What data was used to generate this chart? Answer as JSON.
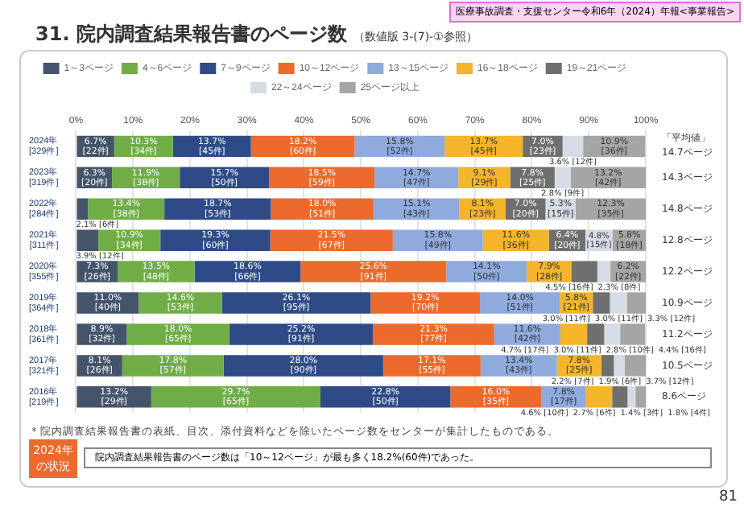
{
  "chart_data": {
    "type": "bar",
    "orientation": "horizontal",
    "stacked": true,
    "title": "31. 院内調査結果報告書のページ数",
    "subtitle": "（数値版 3-(7)-①参照）",
    "categories": [
      "2024年\n[329件]",
      "2023年\n[319件]",
      "2022年\n[284件]",
      "2021年\n[311件]",
      "2020年\n[355件]",
      "2019年\n[364件]",
      "2018年\n[361件]",
      "2017年\n[321件]",
      "2016年\n[219件]"
    ],
    "series": [
      {
        "name": "1～3ページ",
        "color": "#44546a",
        "values": [
          6.7,
          6.3,
          2.1,
          3.9,
          7.3,
          11.0,
          8.9,
          8.1,
          13.2
        ],
        "value_labels": [
          "6.7%\n[22件]",
          "6.3%\n[20件]",
          "2.1%\n[6件]",
          "3.9%\n[12件]",
          "7.3%\n[26件]",
          "11.0%\n[40件]",
          "8.9%\n[32件]",
          "8.1%\n[26件]",
          "13.2%\n[29件]"
        ]
      },
      {
        "name": "4～6ページ",
        "color": "#70ad47",
        "values": [
          10.3,
          11.9,
          13.4,
          10.9,
          13.5,
          14.6,
          18.0,
          17.8,
          29.7
        ],
        "value_labels": [
          "10.3%\n[34件]",
          "11.9%\n[38件]",
          "13.4%\n[38件]",
          "10.9%\n[34件]",
          "13.5%\n[48件]",
          "14.6%\n[53件]",
          "18.0%\n[65件]",
          "17.8%\n[57件]",
          "29.7%\n[65件]"
        ]
      },
      {
        "name": "7～9ページ",
        "color": "#2f4b87",
        "values": [
          13.7,
          15.7,
          18.7,
          19.3,
          18.6,
          26.1,
          25.2,
          28.0,
          22.8
        ],
        "value_labels": [
          "13.7%\n[45件]",
          "15.7%\n[50件]",
          "18.7%\n[53件]",
          "19.3%\n[60件]",
          "18.6%\n[66件]",
          "26.1%\n[95件]",
          "25.2%\n[91件]",
          "28.0%\n[90件]",
          "22.8%\n[50件]"
        ]
      },
      {
        "name": "10～12ページ",
        "color": "#ec6a2c",
        "values": [
          18.2,
          18.5,
          18.0,
          21.5,
          25.6,
          19.2,
          21.3,
          17.1,
          16.0
        ],
        "value_labels": [
          "18.2%\n[60件]",
          "18.5%\n[59件]",
          "18.0%\n[51件]",
          "21.5%\n[67件]",
          "25.6%\n[91件]",
          "19.2%\n[70件]",
          "21.3%\n[77件]",
          "17.1%\n[55件]",
          "16.0%\n[35件]"
        ]
      },
      {
        "name": "13～15ページ",
        "color": "#8faadc",
        "values": [
          15.8,
          14.7,
          15.1,
          15.8,
          14.1,
          14.0,
          11.6,
          13.4,
          7.8
        ],
        "value_labels": [
          "15.8%\n[52件]",
          "14.7%\n[47件]",
          "15.1%\n[43件]",
          "15.8%\n[49件]",
          "14.1%\n[50件]",
          "14.0%\n[51件]",
          "11.6%\n[42件]",
          "13.4%\n[43件]",
          "7.8%\n[17件]"
        ]
      },
      {
        "name": "16～18ページ",
        "color": "#f4b52b",
        "values": [
          13.7,
          9.1,
          8.1,
          11.6,
          7.9,
          5.8,
          4.7,
          7.8,
          4.6
        ],
        "value_labels": [
          "13.7%\n[45件]",
          "9.1%\n[29件]",
          "8.1%\n[23件]",
          "11.6%\n[36件]",
          "7.9%\n[28件]",
          "5.8%\n[21件]",
          "4.7%\n[17件]",
          "7.8%\n[25件]",
          "4.6%\n[10件]"
        ]
      },
      {
        "name": "19～21ページ",
        "color": "#6f6f6f",
        "values": [
          7.0,
          7.8,
          7.0,
          6.4,
          4.5,
          3.0,
          3.0,
          2.2,
          2.7
        ],
        "value_labels": [
          "7.0%\n[23件]",
          "7.8%\n[25件]",
          "7.0%\n[20件]",
          "6.4%\n[20件]",
          "4.5%\n[16件]",
          "3.0%\n[11件]",
          "3.0%\n[11件]",
          "2.2%\n[7件]",
          "2.7%\n[6件]"
        ]
      },
      {
        "name": "22～24ページ",
        "color": "#d6dce5",
        "values": [
          3.6,
          2.8,
          5.3,
          4.8,
          2.3,
          3.0,
          2.8,
          1.9,
          1.4
        ],
        "value_labels": [
          "3.6%\n[12件]",
          "2.8%\n[9件]",
          "5.3%\n[15件]",
          "4.8%\n[15件]",
          "2.3%\n[8件]",
          "3.0%\n[11件]",
          "2.8%\n[10件]",
          "1.9%\n[6件]",
          "1.4%\n[3件]"
        ]
      },
      {
        "name": "25ページ以上",
        "color": "#a5a5a5",
        "values": [
          10.9,
          13.2,
          12.3,
          5.8,
          6.2,
          3.3,
          4.4,
          3.7,
          1.8
        ],
        "value_labels": [
          "10.9%\n[36件]",
          "13.2%\n[42件]",
          "12.3%\n[35件]",
          "5.8%\n[18件]",
          "6.2%\n[22件]",
          "3.3%\n[12件]",
          "4.4%\n[16件]",
          "3.7%\n[12件]",
          "1.8%\n[4件]"
        ]
      }
    ],
    "xlim": [
      0,
      100
    ],
    "xticks": [
      {
        "value": 0,
        "label": "0%"
      },
      {
        "value": 10,
        "label": "10%"
      },
      {
        "value": 20,
        "label": "20%"
      },
      {
        "value": 30,
        "label": "30%"
      },
      {
        "value": 40,
        "label": "40%"
      },
      {
        "value": 50,
        "label": "50%"
      },
      {
        "value": 60,
        "label": "60%"
      },
      {
        "value": 70,
        "label": "70%"
      },
      {
        "value": 80,
        "label": "80%"
      },
      {
        "value": 90,
        "label": "90%"
      },
      {
        "value": 100,
        "label": "100%"
      }
    ],
    "grid": "x",
    "legend": "top",
    "annotations": [
      "医療事故調査・支援センター令和6年（2024）年報<事業報告>",
      "「平均値」",
      "＊院内調査結果報告書の表紙、目次、添付資料などを除いたページ数をセンターが集計したものである。",
      "2024年の状況",
      "院内調査結果報告書のページ数は「10～12ページ」が最も多く18.2%(60件)であった。",
      "81",
      "14.7ページ",
      "14.3ページ",
      "14.8ページ",
      "12.8ページ",
      "12.2ページ",
      "10.9ページ",
      "11.2ページ",
      "10.5ページ",
      "8.6ページ"
    ]
  }
}
